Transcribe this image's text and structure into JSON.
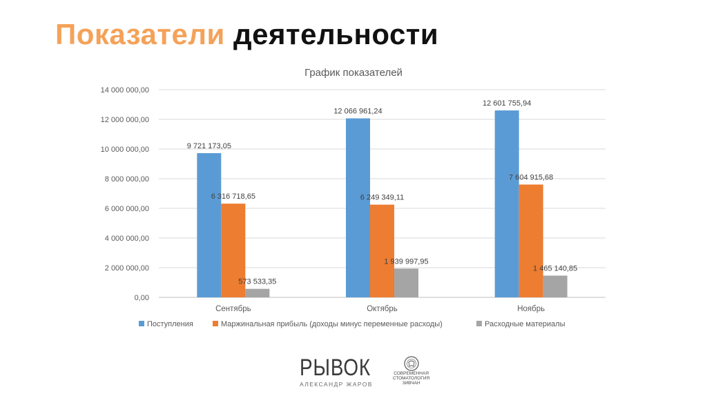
{
  "slide": {
    "title_accent": "Показатели",
    "title_rest": "деятельности"
  },
  "chart_data": {
    "type": "bar",
    "title": "График показателей",
    "categories": [
      "Сентябрь",
      "Октябрь",
      "Ноябрь"
    ],
    "series": [
      {
        "name": "Поступления",
        "color": "#5b9bd5",
        "values": [
          9721173.05,
          12066961.24,
          12601755.94
        ],
        "labels": [
          "9 721 173,05",
          "12 066 961,24",
          "12 601 755,94"
        ]
      },
      {
        "name": "Маржинальная прибыль (доходы минус переменные расходы)",
        "color": "#ed7d31",
        "values": [
          6316718.65,
          6249349.11,
          7604915.68
        ],
        "labels": [
          "6 316 718,65",
          "6 249 349,11",
          "7 604 915,68"
        ]
      },
      {
        "name": "Расходные материалы",
        "color": "#a5a5a5",
        "values": [
          573533.35,
          1939997.95,
          1465140.85
        ],
        "labels": [
          "573 533,35",
          "1 939 997,95",
          "1 465 140,85"
        ]
      }
    ],
    "ylim": [
      0,
      14000000
    ],
    "yticks": [
      0,
      2000000,
      4000000,
      6000000,
      8000000,
      10000000,
      12000000,
      14000000
    ],
    "ytick_labels": [
      "0,00",
      "2 000 000,00",
      "4 000 000,00",
      "6 000 000,00",
      "8 000 000,00",
      "10 000 000,00",
      "12 000 000,00",
      "14 000 000,00"
    ],
    "grid": true,
    "legend_position": "bottom"
  },
  "footer": {
    "brand": "РЫВОК",
    "brand_sub": "АЛЕКСАНДР ЖАРОВ",
    "seal_text": "СОВРЕМЕННАЯ СТОМАТОЛОГИЯ ЗИВЧАН"
  }
}
